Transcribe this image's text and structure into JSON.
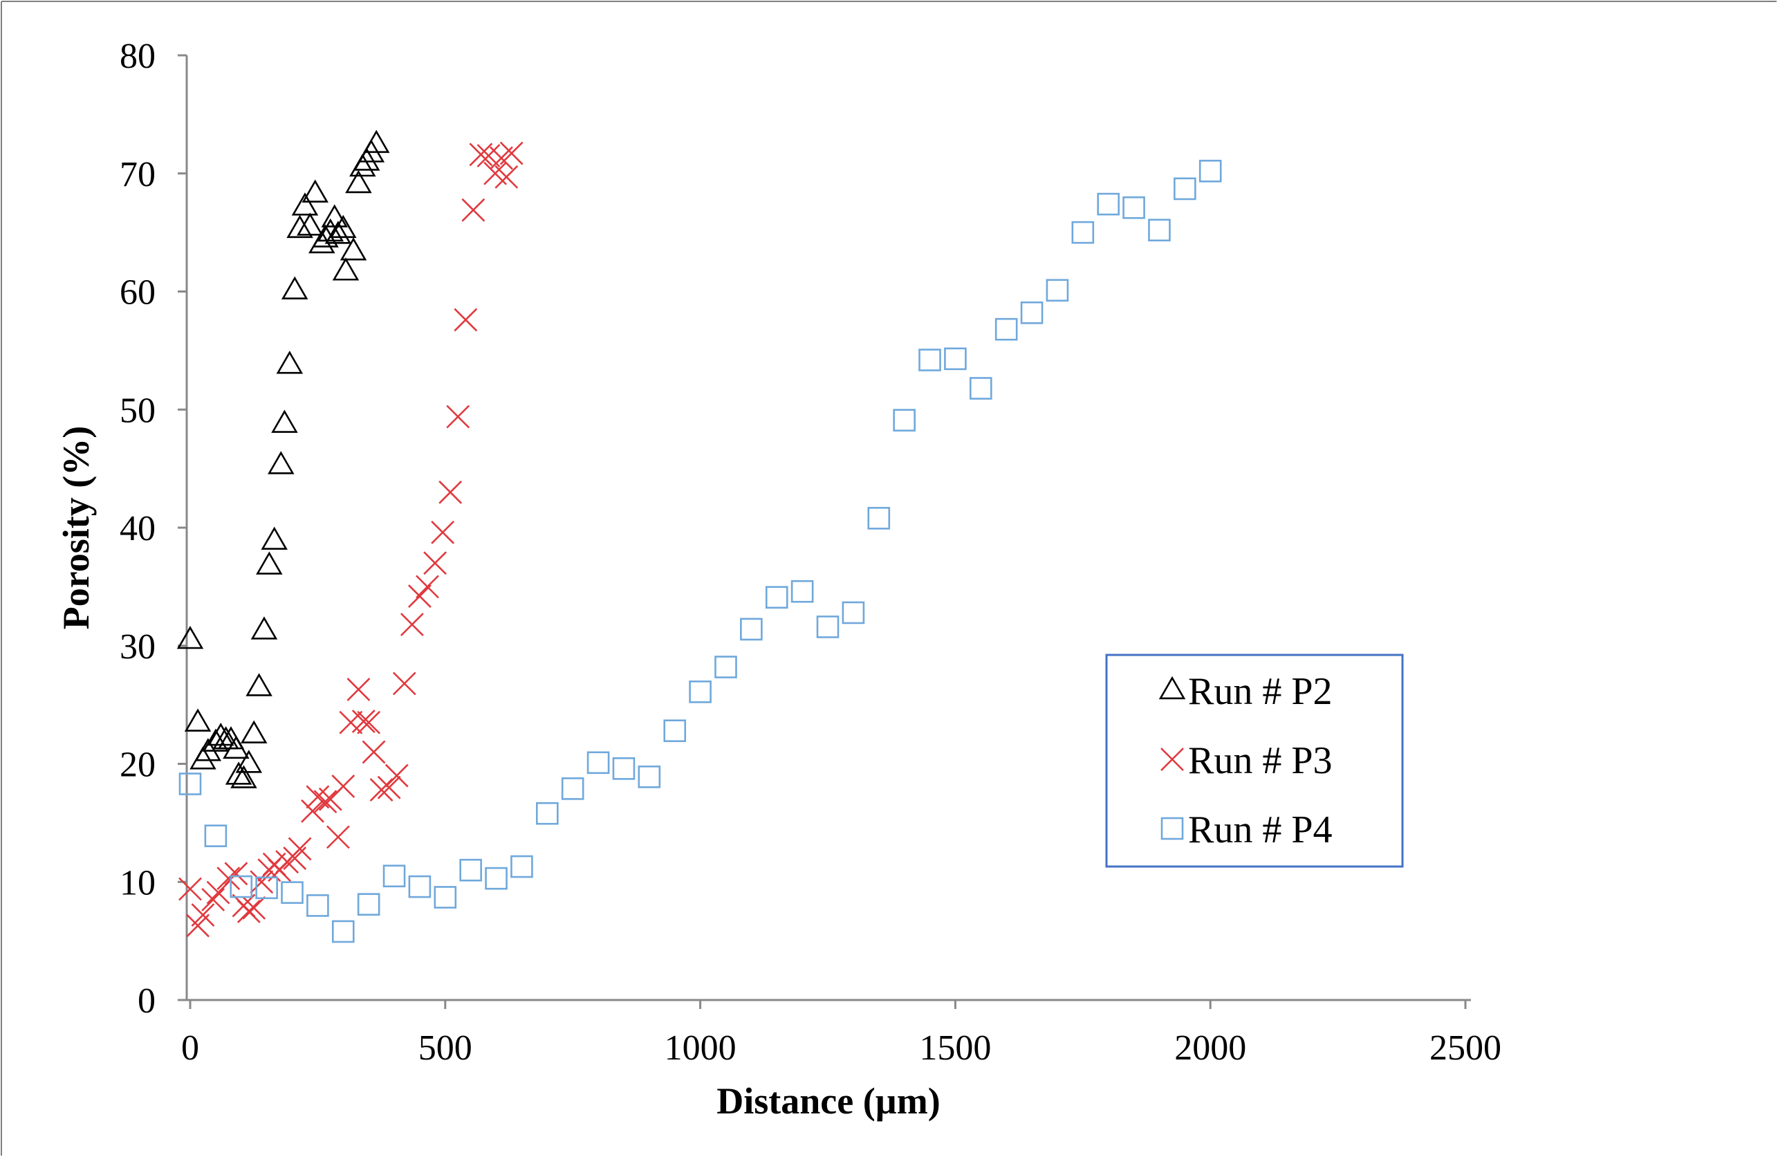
{
  "chart_data": {
    "type": "scatter",
    "title": "",
    "xlabel": "Distance (µm)",
    "ylabel": "Porosity (%)",
    "xlim": [
      0,
      2500
    ],
    "ylim": [
      0,
      80
    ],
    "xticks": [
      0,
      500,
      1000,
      1500,
      2000,
      2500
    ],
    "yticks": [
      0,
      10,
      20,
      30,
      40,
      50,
      60,
      70,
      80
    ],
    "grid": false,
    "legend_position": "right-middle",
    "series": [
      {
        "name": "Run # P2",
        "marker": "triangle",
        "color": "#000000",
        "points": [
          [
            0,
            30.5
          ],
          [
            15,
            23.5
          ],
          [
            25,
            20.3
          ],
          [
            35,
            21.0
          ],
          [
            50,
            21.8
          ],
          [
            60,
            22.3
          ],
          [
            70,
            22.0
          ],
          [
            80,
            22.0
          ],
          [
            90,
            21.2
          ],
          [
            95,
            19.0
          ],
          [
            105,
            18.7
          ],
          [
            115,
            20.0
          ],
          [
            125,
            22.5
          ],
          [
            135,
            26.5
          ],
          [
            145,
            31.3
          ],
          [
            155,
            36.8
          ],
          [
            165,
            38.9
          ],
          [
            178,
            45.3
          ],
          [
            185,
            48.8
          ],
          [
            195,
            53.8
          ],
          [
            205,
            60.1
          ],
          [
            215,
            65.3
          ],
          [
            225,
            67.2
          ],
          [
            235,
            65.5
          ],
          [
            245,
            68.3
          ],
          [
            258,
            64.0
          ],
          [
            265,
            64.5
          ],
          [
            275,
            65.0
          ],
          [
            283,
            66.2
          ],
          [
            290,
            64.8
          ],
          [
            300,
            65.3
          ],
          [
            305,
            61.7
          ],
          [
            320,
            63.4
          ],
          [
            330,
            69.1
          ],
          [
            338,
            70.5
          ],
          [
            346,
            71.0
          ],
          [
            355,
            71.7
          ],
          [
            365,
            72.5
          ]
        ]
      },
      {
        "name": "Run # P3",
        "marker": "x",
        "color": "#e0393e",
        "points": [
          [
            0,
            9.4
          ],
          [
            15,
            6.3
          ],
          [
            25,
            7.2
          ],
          [
            45,
            8.5
          ],
          [
            55,
            9.1
          ],
          [
            75,
            10.3
          ],
          [
            90,
            10.7
          ],
          [
            105,
            8.0
          ],
          [
            115,
            7.5
          ],
          [
            125,
            7.8
          ],
          [
            140,
            10.0
          ],
          [
            155,
            11.0
          ],
          [
            165,
            11.5
          ],
          [
            175,
            11.0
          ],
          [
            190,
            11.7
          ],
          [
            205,
            12.0
          ],
          [
            215,
            12.8
          ],
          [
            240,
            16.0
          ],
          [
            250,
            17.2
          ],
          [
            265,
            16.8
          ],
          [
            275,
            17.0
          ],
          [
            290,
            13.8
          ],
          [
            300,
            18.1
          ],
          [
            315,
            23.5
          ],
          [
            330,
            26.3
          ],
          [
            340,
            23.6
          ],
          [
            350,
            23.5
          ],
          [
            360,
            21.0
          ],
          [
            375,
            17.8
          ],
          [
            390,
            18.0
          ],
          [
            405,
            19.0
          ],
          [
            420,
            26.8
          ],
          [
            435,
            31.8
          ],
          [
            450,
            34.2
          ],
          [
            465,
            35.0
          ],
          [
            480,
            37.0
          ],
          [
            495,
            39.6
          ],
          [
            510,
            43.0
          ],
          [
            525,
            49.4
          ],
          [
            540,
            57.6
          ],
          [
            555,
            66.9
          ],
          [
            570,
            71.6
          ],
          [
            585,
            71.5
          ],
          [
            598,
            70.0
          ],
          [
            610,
            71.3
          ],
          [
            620,
            69.7
          ],
          [
            630,
            71.7
          ]
        ]
      },
      {
        "name": "Run # P4",
        "marker": "square",
        "color": "#6fa8dc",
        "points": [
          [
            0,
            18.3
          ],
          [
            50,
            13.9
          ],
          [
            100,
            9.6
          ],
          [
            150,
            9.5
          ],
          [
            200,
            9.1
          ],
          [
            250,
            8.0
          ],
          [
            300,
            5.8
          ],
          [
            350,
            8.1
          ],
          [
            400,
            10.5
          ],
          [
            450,
            9.6
          ],
          [
            500,
            8.7
          ],
          [
            550,
            11.0
          ],
          [
            600,
            10.3
          ],
          [
            650,
            11.3
          ],
          [
            700,
            15.8
          ],
          [
            750,
            17.9
          ],
          [
            800,
            20.1
          ],
          [
            850,
            19.6
          ],
          [
            900,
            18.9
          ],
          [
            950,
            22.8
          ],
          [
            1000,
            26.1
          ],
          [
            1050,
            28.2
          ],
          [
            1100,
            31.4
          ],
          [
            1150,
            34.1
          ],
          [
            1200,
            34.6
          ],
          [
            1250,
            31.6
          ],
          [
            1300,
            32.8
          ],
          [
            1350,
            40.8
          ],
          [
            1400,
            49.1
          ],
          [
            1450,
            54.2
          ],
          [
            1500,
            54.3
          ],
          [
            1550,
            51.8
          ],
          [
            1600,
            56.8
          ],
          [
            1650,
            58.2
          ],
          [
            1700,
            60.1
          ],
          [
            1750,
            65.0
          ],
          [
            1800,
            67.4
          ],
          [
            1850,
            67.1
          ],
          [
            1900,
            65.2
          ],
          [
            1950,
            68.7
          ],
          [
            2000,
            70.2
          ]
        ]
      }
    ]
  }
}
